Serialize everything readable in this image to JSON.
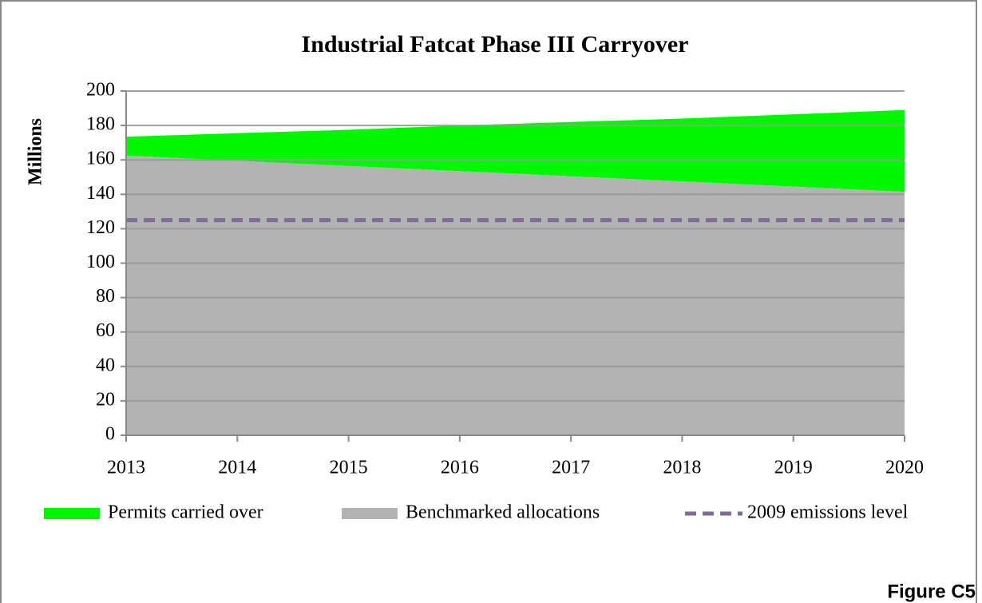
{
  "chart_data": {
    "type": "area",
    "stacked": true,
    "title": "Industrial Fatcat Phase III Carryover",
    "y_label": "Millions",
    "figure_label": "Figure C5",
    "categories": [
      "2013",
      "2014",
      "2015",
      "2016",
      "2017",
      "2018",
      "2019",
      "2020"
    ],
    "series": [
      {
        "name": "Permits carried over",
        "color": "#00f700",
        "kind": "area",
        "values": [
          11,
          16,
          21,
          26.5,
          31.5,
          36.5,
          42,
          47.5
        ]
      },
      {
        "name": "Benchmarked allocations",
        "color": "#b3b3b3",
        "kind": "area",
        "values": [
          162.5,
          159.5,
          156.5,
          153.5,
          150.5,
          147.5,
          144.5,
          141.5
        ]
      },
      {
        "name": "2009 emissions level",
        "color": "#7f6c97",
        "kind": "line",
        "dashed": true,
        "values": [
          125,
          125,
          125,
          125,
          125,
          125,
          125,
          125
        ]
      }
    ],
    "ylim": [
      0,
      200
    ],
    "yticks": [
      0,
      20,
      40,
      60,
      80,
      100,
      120,
      140,
      160,
      180,
      200
    ],
    "grid": true
  }
}
